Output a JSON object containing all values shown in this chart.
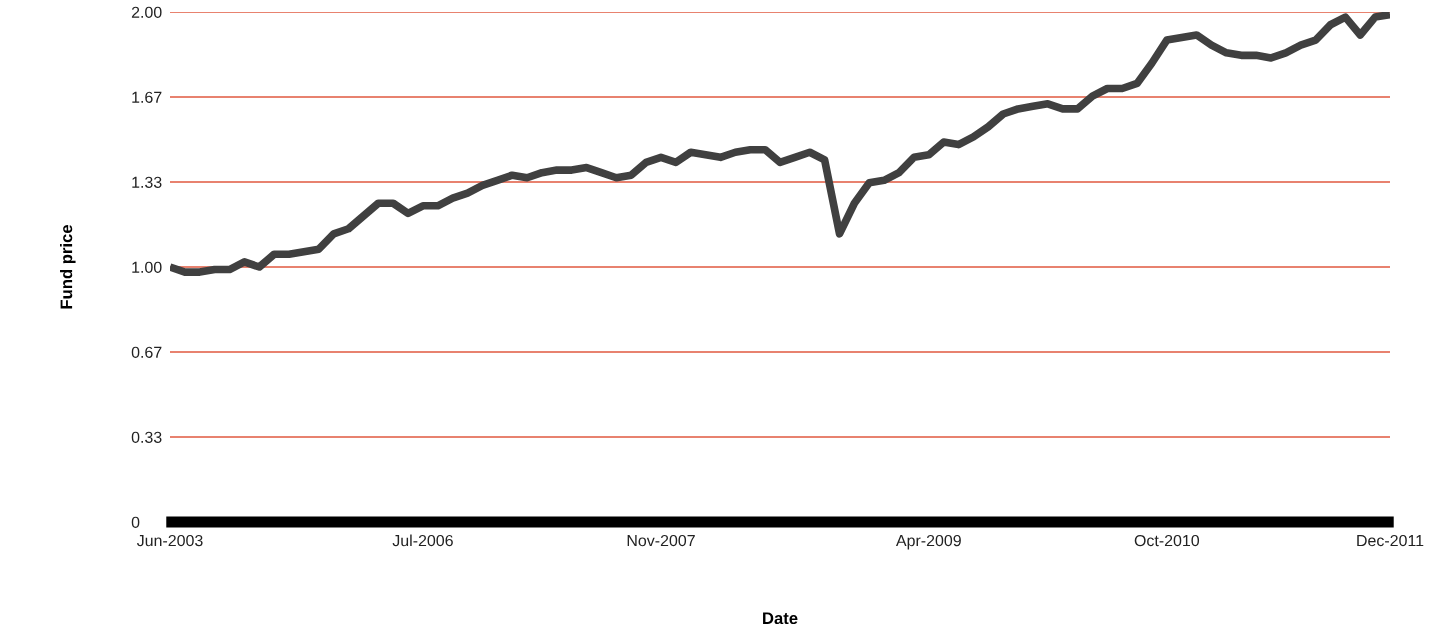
{
  "chart_data": {
    "type": "line",
    "xlabel": "Date",
    "ylabel": "Fund price",
    "categories": [
      "Jun-2003",
      null,
      null,
      null,
      null,
      null,
      null,
      null,
      null,
      null,
      null,
      null,
      null,
      null,
      null,
      null,
      null,
      "Jul-2006",
      null,
      null,
      null,
      null,
      null,
      null,
      null,
      null,
      null,
      null,
      null,
      null,
      null,
      null,
      null,
      "Nov-2007",
      null,
      null,
      null,
      null,
      null,
      null,
      null,
      null,
      null,
      null,
      null,
      null,
      null,
      null,
      null,
      null,
      null,
      "Apr-2009",
      null,
      null,
      null,
      null,
      null,
      null,
      null,
      null,
      null,
      null,
      null,
      null,
      null,
      null,
      null,
      "Oct-2010",
      null,
      null,
      null,
      null,
      null,
      null,
      null,
      null,
      null,
      null,
      null,
      null,
      null,
      null,
      "Dec-2011"
    ],
    "series": [
      {
        "color": "#404040",
        "values": [
          1.0,
          0.98,
          0.98,
          0.99,
          0.99,
          1.02,
          1.0,
          1.05,
          1.05,
          1.06,
          1.07,
          1.13,
          1.15,
          1.2,
          1.25,
          1.25,
          1.21,
          1.24,
          1.24,
          1.27,
          1.29,
          1.32,
          1.34,
          1.36,
          1.35,
          1.37,
          1.38,
          1.38,
          1.39,
          1.37,
          1.35,
          1.36,
          1.41,
          1.43,
          1.41,
          1.45,
          1.44,
          1.43,
          1.45,
          1.46,
          1.46,
          1.41,
          1.43,
          1.45,
          1.42,
          1.13,
          1.25,
          1.33,
          1.34,
          1.37,
          1.43,
          1.44,
          1.49,
          1.48,
          1.51,
          1.55,
          1.6,
          1.62,
          1.63,
          1.64,
          1.62,
          1.62,
          1.67,
          1.7,
          1.7,
          1.72,
          1.8,
          1.89,
          1.9,
          1.91,
          1.87,
          1.84,
          1.83,
          1.83,
          1.82,
          1.84,
          1.87,
          1.89,
          1.95,
          1.98,
          1.91,
          1.98,
          1.99
        ]
      }
    ],
    "ylim": [
      0,
      2.0
    ],
    "yticks": [
      0,
      {
        "value": 0.3333,
        "label": "0.33"
      },
      {
        "value": 0.6667,
        "label": "0.67"
      },
      {
        "value": 1.0,
        "label": "1.00"
      },
      {
        "value": 1.3333,
        "label": "1.33"
      },
      {
        "value": 1.6667,
        "label": "1.67"
      },
      {
        "value": 2.0,
        "label": "2.00"
      }
    ],
    "grid": "y",
    "marker": "none",
    "line_style": "solid",
    "legend": false
  }
}
